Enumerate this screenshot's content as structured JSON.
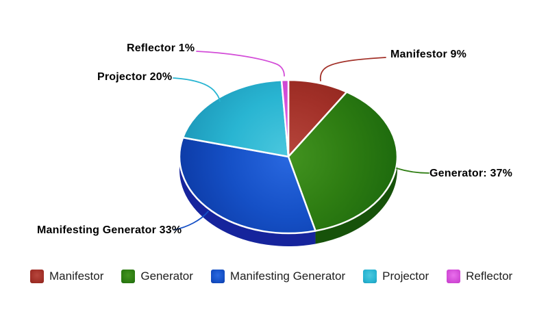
{
  "background": "#ffffff",
  "chart_data": {
    "type": "pie",
    "style": "3d-exploded-none",
    "unit": "%",
    "direction": "clockwise",
    "start_angle_deg": 0,
    "legend_position": "bottom",
    "total": 100,
    "separator_color": "#ffffff",
    "slices": [
      {
        "label": "Manifestor",
        "value": 9,
        "callout": "Manifestor 9%",
        "color": "#A23028",
        "light": "#B6463C",
        "dark": "#8C241C",
        "rim": "#6E1B14"
      },
      {
        "label": "Generator",
        "value": 37,
        "callout": "Generator: 37%",
        "color": "#2E7D12",
        "light": "#429320",
        "dark": "#1E6B0E",
        "rim": "#17520A"
      },
      {
        "label": "Manifesting Generator",
        "value": 33,
        "callout": "Manifesting Generator 33%",
        "color": "#1550C6",
        "light": "#2968E0",
        "dark": "#0D3CA8",
        "rim": "#16249C"
      },
      {
        "label": "Projector",
        "value": 20,
        "callout": "Projector 20%",
        "color": "#29B5D2",
        "light": "#4CC8DE",
        "dark": "#1D99BA",
        "rim": "#157A96"
      },
      {
        "label": "Reflector",
        "value": 1,
        "callout": "Reflector 1%",
        "color": "#D34DD8",
        "light": "#E96FEC",
        "dark": "#C43DC8",
        "rim": "#A030A4"
      }
    ]
  }
}
